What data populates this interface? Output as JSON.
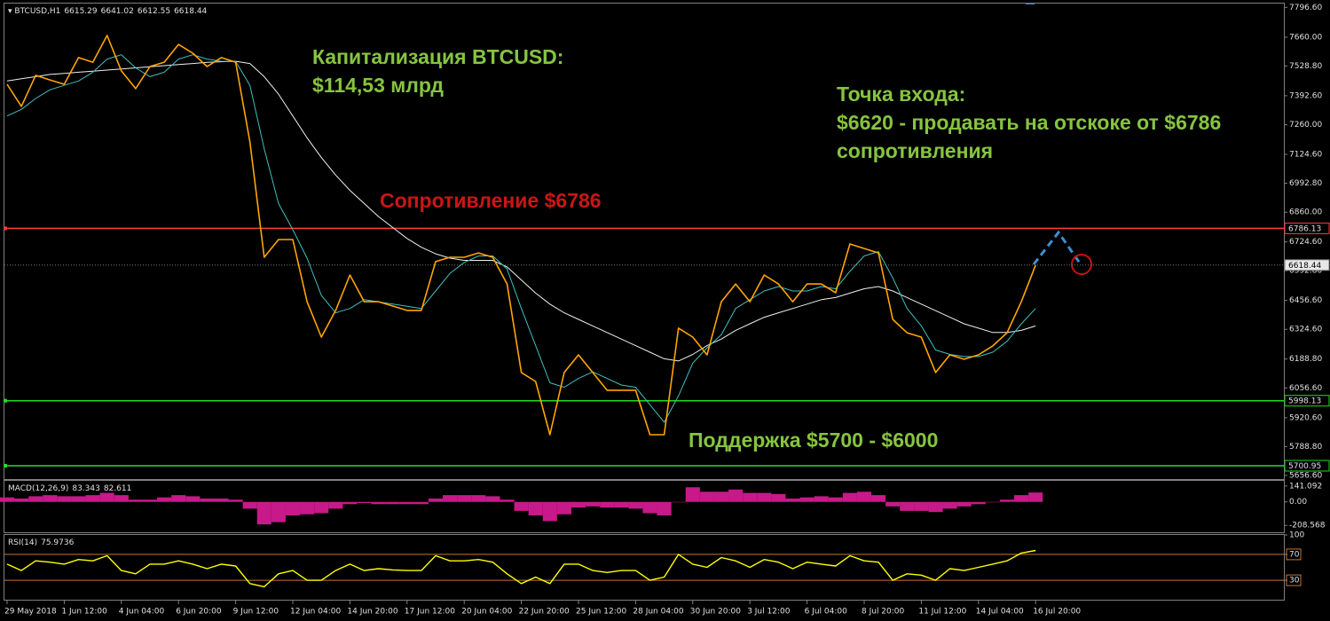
{
  "chart_data": [
    {
      "type": "line",
      "title": "BTCUSD,H1",
      "ohlc": [
        6615.29,
        6641.02,
        6612.55,
        6618.44
      ],
      "categories": [
        "29 May 2018",
        null,
        null,
        null,
        "1 Jun 12:00",
        null,
        null,
        null,
        "4 Jun 04:00",
        null,
        null,
        null,
        "6 Jun 20:00",
        null,
        null,
        null,
        "9 Jun 12:00",
        null,
        null,
        null,
        "12 Jun 04:00",
        null,
        null,
        null,
        "14 Jun 20:00",
        null,
        null,
        null,
        "17 Jun 12:00",
        null,
        null,
        null,
        "20 Jun 04:00",
        null,
        null,
        null,
        "22 Jun 20:00",
        null,
        null,
        null,
        "25 Jun 12:00",
        null,
        null,
        null,
        "28 Jun 04:00",
        null,
        null,
        null,
        "30 Jun 20:00",
        null,
        null,
        null,
        "3 Jul 12:00",
        null,
        null,
        null,
        "6 Jul 04:00",
        null,
        null,
        null,
        "8 Jul 20:00",
        null,
        null,
        null,
        "11 Jul 12:00",
        null,
        null,
        null,
        "14 Jul 04:00",
        null,
        null,
        null,
        "16 Jul 20:00"
      ],
      "series": [
        {
          "color": "#ffa500",
          "values": [
            7445,
            7344,
            7486,
            7465,
            7445,
            7567,
            7546,
            7668,
            7506,
            7425,
            7526,
            7546,
            7627,
            7587,
            7526,
            7567,
            7546,
            7181,
            6654,
            6735,
            6735,
            6451,
            6289,
            6411,
            6573,
            6451,
            6451,
            6431,
            6411,
            6411,
            6634,
            6654,
            6654,
            6674,
            6654,
            6532,
            6127,
            6086,
            5843,
            6127,
            6208,
            6127,
            6046,
            6046,
            6046,
            5843,
            5843,
            6330,
            6289,
            6208,
            6451,
            6532,
            6451,
            6573,
            6532,
            6451,
            6532,
            6532,
            6492,
            6715,
            6694,
            6674,
            6370,
            6309,
            6289,
            6127,
            6208,
            6188,
            6208,
            6249,
            6309,
            6451,
            6618.44
          ]
        },
        {
          "color": "#40c0c0",
          "values": [
            7300,
            7330,
            7380,
            7420,
            7440,
            7460,
            7500,
            7560,
            7580,
            7520,
            7480,
            7500,
            7560,
            7580,
            7560,
            7550,
            7550,
            7440,
            7150,
            6900,
            6780,
            6650,
            6480,
            6400,
            6420,
            6460,
            6450,
            6440,
            6430,
            6420,
            6500,
            6580,
            6630,
            6660,
            6660,
            6600,
            6420,
            6250,
            6080,
            6060,
            6100,
            6130,
            6100,
            6070,
            6060,
            5980,
            5900,
            6020,
            6170,
            6240,
            6300,
            6420,
            6460,
            6500,
            6520,
            6500,
            6500,
            6520,
            6510,
            6590,
            6660,
            6680,
            6560,
            6420,
            6340,
            6230,
            6210,
            6200,
            6200,
            6220,
            6270,
            6350,
            6420
          ]
        },
        {
          "color": "#f0f0f0",
          "values": [
            7460,
            7470,
            7480,
            7490,
            7495,
            7500,
            7505,
            7510,
            7515,
            7520,
            7525,
            7530,
            7535,
            7540,
            7545,
            7548,
            7550,
            7540,
            7480,
            7400,
            7300,
            7200,
            7110,
            7030,
            6960,
            6900,
            6840,
            6790,
            6740,
            6700,
            6670,
            6650,
            6640,
            6640,
            6640,
            6610,
            6550,
            6490,
            6440,
            6400,
            6370,
            6340,
            6310,
            6280,
            6250,
            6220,
            6190,
            6180,
            6210,
            6250,
            6280,
            6320,
            6350,
            6380,
            6400,
            6420,
            6440,
            6460,
            6470,
            6490,
            6510,
            6520,
            6500,
            6470,
            6440,
            6410,
            6380,
            6350,
            6330,
            6310,
            6310,
            6320,
            6340
          ]
        }
      ],
      "ylim": [
        5640,
        7810
      ],
      "yticks": [
        {
          "value": 7796.6,
          "label": "7796.60"
        },
        {
          "value": 7660,
          "label": "7660.00"
        },
        {
          "value": 7528.8,
          "label": "7528.80"
        },
        {
          "value": 7392.6,
          "label": "7392.60"
        },
        {
          "value": 7260,
          "label": "7260.00"
        },
        {
          "value": 7124.6,
          "label": "7124.60"
        },
        {
          "value": 6992.8,
          "label": "6992.80"
        },
        {
          "value": 6860,
          "label": "6860.00"
        },
        {
          "value": 6724.6,
          "label": "6724.60"
        },
        {
          "value": 6592.8,
          "label": "6592.80"
        },
        {
          "value": 6456.6,
          "label": "6456.60"
        },
        {
          "value": 6324.6,
          "label": "6324.60"
        },
        {
          "value": 6188.8,
          "label": "6188.80"
        },
        {
          "value": 6056.6,
          "label": "6056.60"
        },
        {
          "value": 5920.6,
          "label": "5920.60"
        },
        {
          "value": 5788.8,
          "label": "5788.80"
        },
        {
          "value": 5656.6,
          "label": "5656.60"
        }
      ],
      "levels": [
        {
          "value": 6786.13,
          "color": "#ff3b3b"
        },
        {
          "value": 6618.44,
          "color": "#777777"
        },
        {
          "value": 5998.13,
          "color": "#22dd22"
        },
        {
          "value": 5700.95,
          "color": "#22dd22"
        }
      ],
      "annotations": [
        {
          "text": "Капитализация BTCUSD:",
          "color": "#86c440"
        },
        {
          "text": "$114,53 млрд",
          "color": "#86c440"
        },
        {
          "text": "Точка входа:",
          "color": "#86c440"
        },
        {
          "text": "$6620 - продавать на отскоке от $6786",
          "color": "#86c440"
        },
        {
          "text": "сопротивления",
          "color": "#86c440"
        },
        {
          "text": "Сопротивление $6786",
          "color": "#cc1515"
        },
        {
          "text": "Поддержка $5700 - $6000",
          "color": "#86c440"
        }
      ]
    },
    {
      "type": "bar",
      "title": "MACD(12,26,9)",
      "header_values": [
        83.343,
        82.611
      ],
      "color": "#c8198a",
      "values": [
        40,
        30,
        50,
        60,
        50,
        50,
        60,
        80,
        60,
        20,
        20,
        40,
        60,
        50,
        30,
        30,
        20,
        -60,
        -200,
        -180,
        -120,
        -110,
        -100,
        -60,
        -20,
        -10,
        -20,
        -20,
        -20,
        -20,
        30,
        60,
        60,
        60,
        50,
        20,
        -80,
        -120,
        -170,
        -110,
        -50,
        -40,
        -50,
        -50,
        -60,
        -100,
        -120,
        0,
        130,
        90,
        90,
        110,
        80,
        80,
        70,
        30,
        40,
        50,
        40,
        80,
        90,
        60,
        -40,
        -80,
        -80,
        -90,
        -60,
        -40,
        -20,
        0,
        20,
        60,
        83.343
      ],
      "ylim": [
        -270,
        195
      ],
      "yticks": [
        141.092,
        {
          "value": 0,
          "label": "0.00"
        },
        -208.568
      ]
    },
    {
      "type": "line",
      "title": "RSI(14)",
      "header_values": [
        75.9736
      ],
      "color": "#ffff00",
      "values": [
        55,
        45,
        60,
        58,
        55,
        62,
        60,
        68,
        45,
        40,
        55,
        55,
        60,
        55,
        48,
        55,
        52,
        25,
        20,
        40,
        45,
        30,
        30,
        45,
        55,
        45,
        48,
        46,
        45,
        45,
        68,
        60,
        60,
        62,
        58,
        40,
        25,
        35,
        25,
        55,
        55,
        45,
        42,
        45,
        45,
        30,
        35,
        70,
        55,
        50,
        65,
        60,
        50,
        62,
        58,
        48,
        58,
        55,
        52,
        68,
        60,
        58,
        30,
        40,
        38,
        30,
        48,
        45,
        50,
        55,
        60,
        72,
        75.9736
      ],
      "ylim": [
        0,
        100
      ],
      "yticks": [
        100,
        70,
        30
      ],
      "levels": [
        70,
        30
      ],
      "level_color": "#c87533"
    }
  ]
}
